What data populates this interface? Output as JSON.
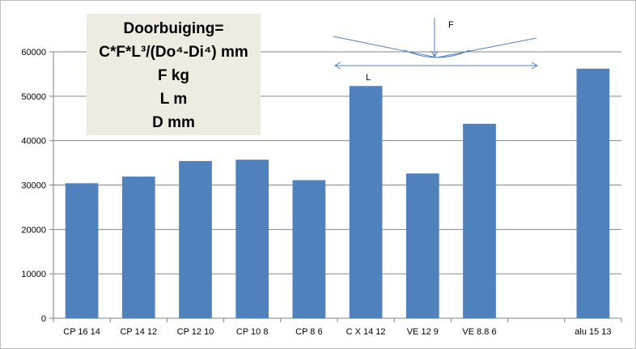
{
  "chart_data": {
    "type": "bar",
    "categories": [
      "CP 16 14",
      "CP 14 12",
      "CP 12 10",
      "CP 10 8",
      "CP 8 6",
      "C X 14 12",
      "VE 12 9",
      "VE 8.8 6",
      "",
      "alu 15 13"
    ],
    "values": [
      30400,
      31900,
      35400,
      35700,
      31100,
      52300,
      32600,
      43800,
      null,
      56200
    ],
    "ylim": [
      0,
      60000
    ],
    "yticks": [
      0,
      10000,
      20000,
      30000,
      40000,
      50000,
      60000
    ],
    "grid": true,
    "bar_color": "#4f81bd",
    "annotation": {
      "lines": [
        "Doorbuiging=",
        "C*F*L³/(Do⁴-Di⁴) mm",
        "F kg",
        "L m",
        "D mm"
      ]
    },
    "diagram": {
      "force_label": "F",
      "length_label": "L",
      "line_color": "#4f81bd"
    }
  }
}
